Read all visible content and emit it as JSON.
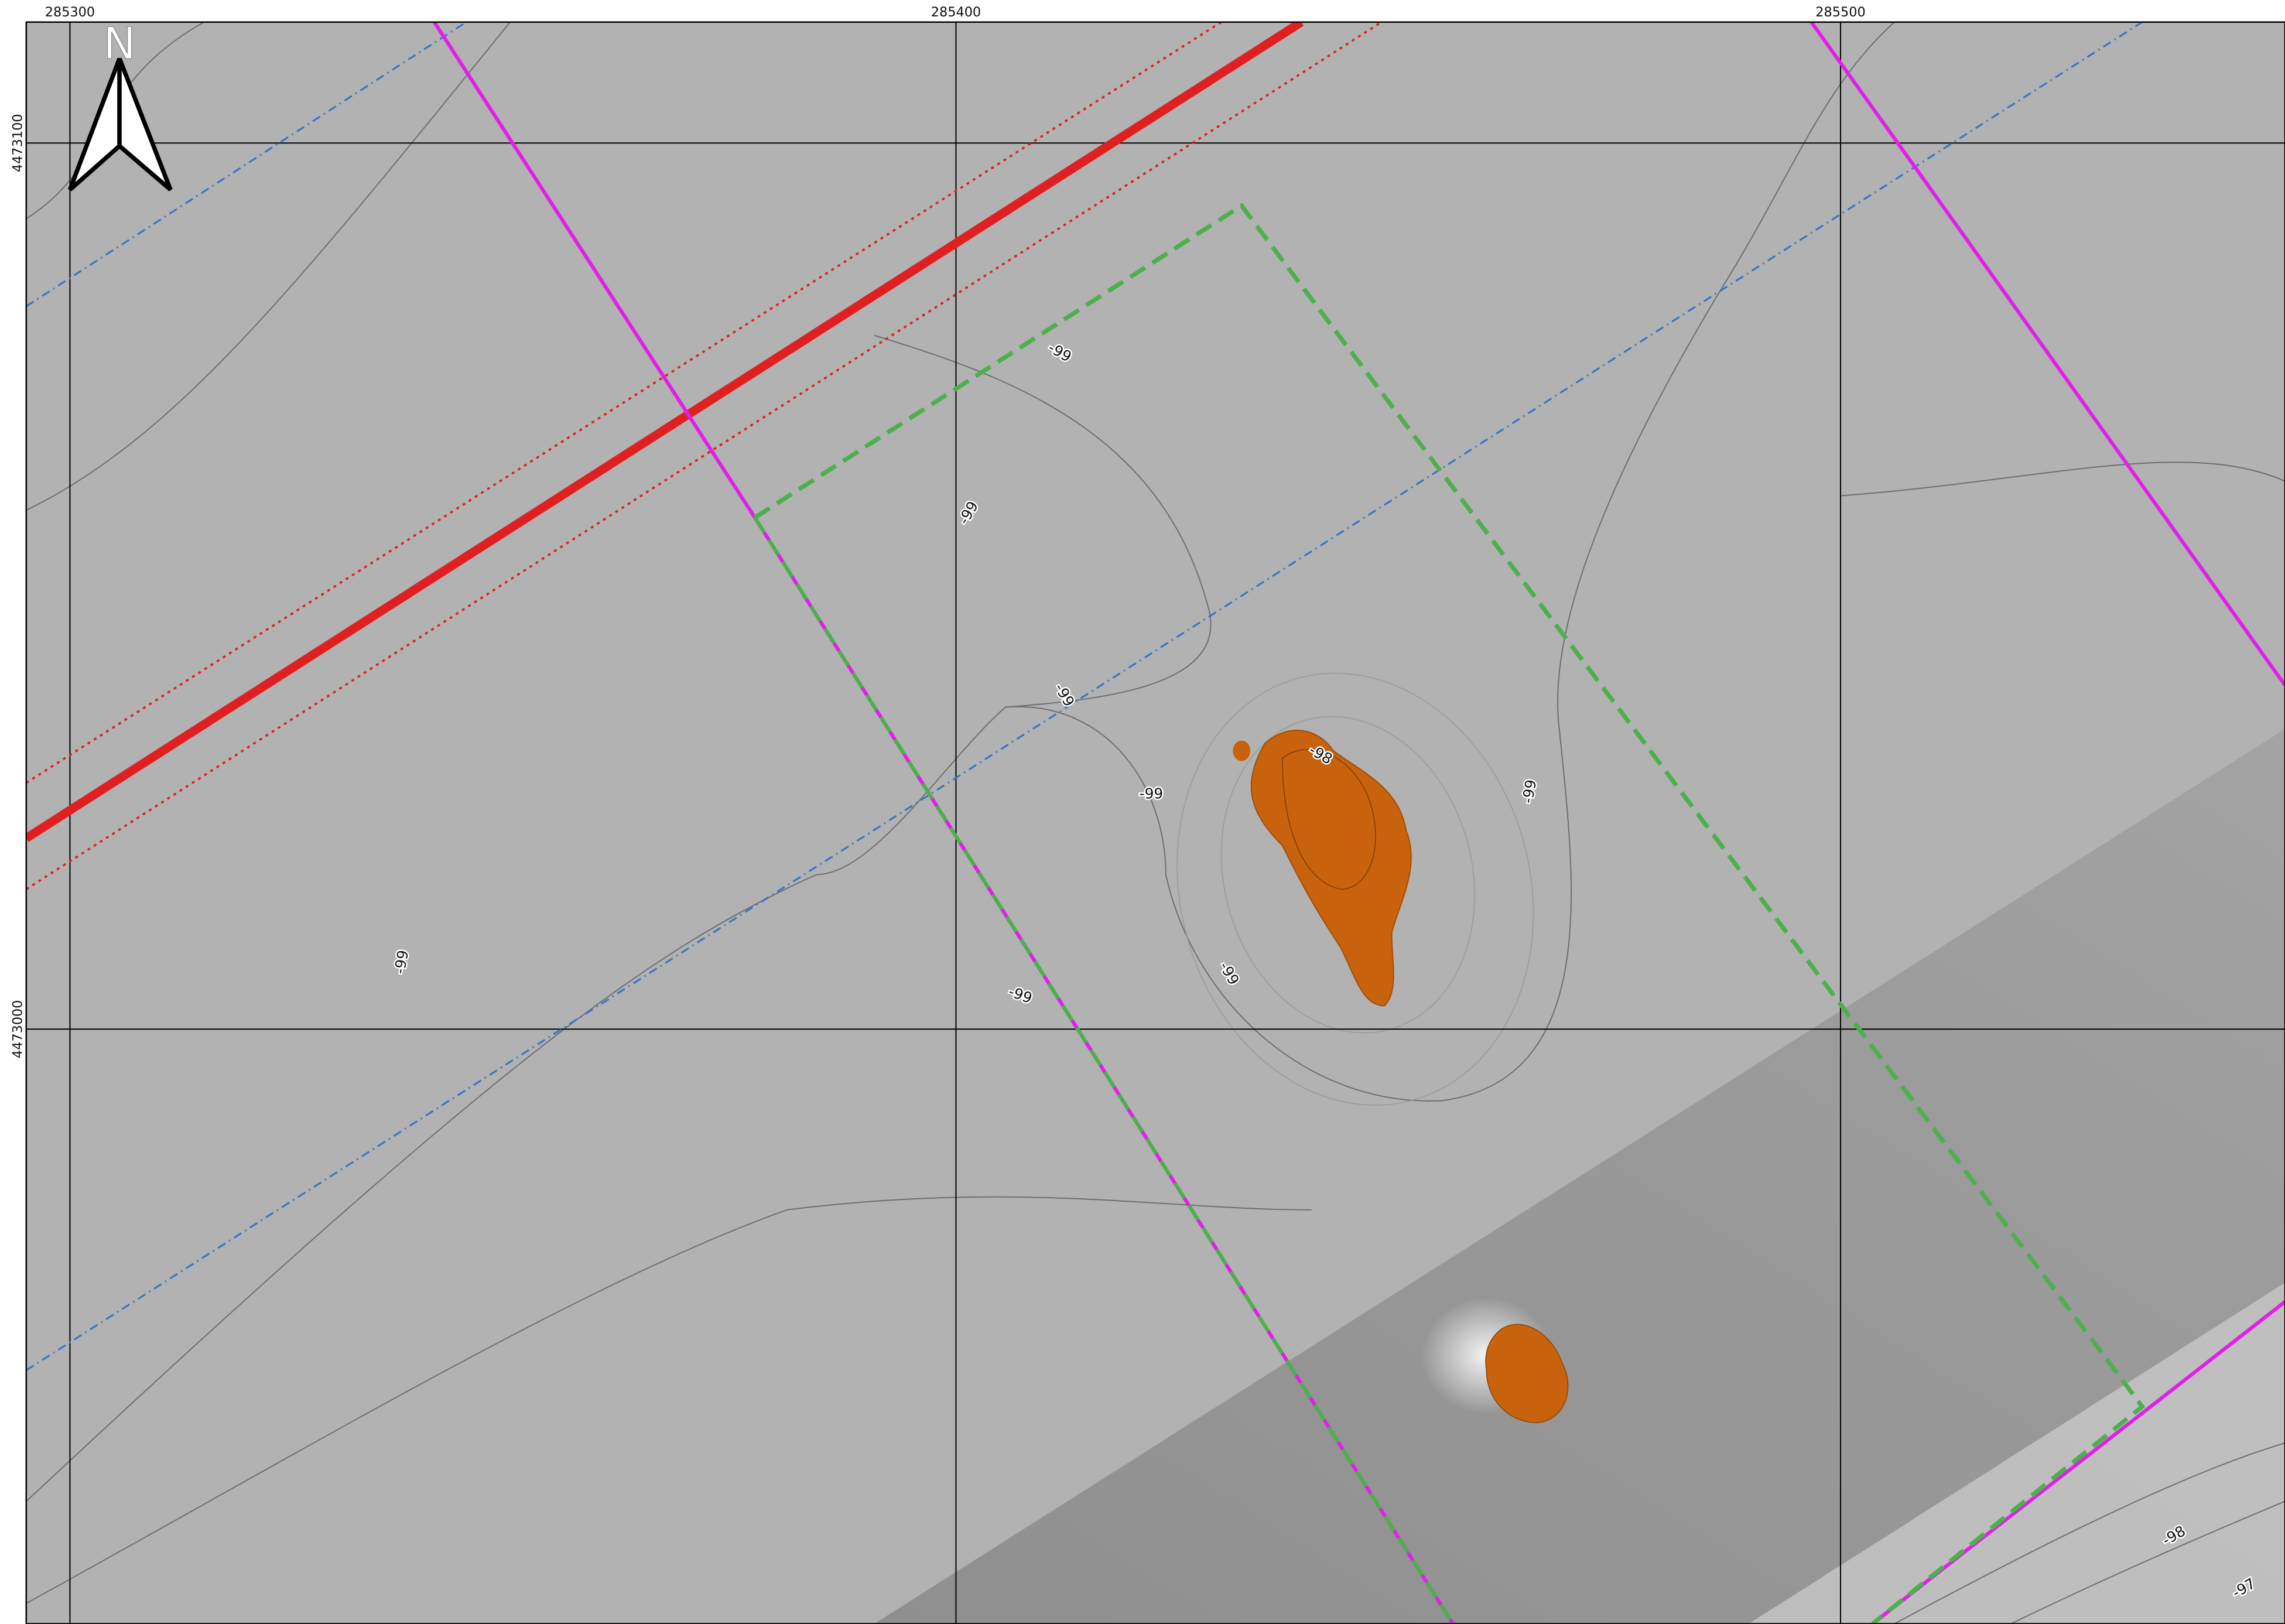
{
  "map": {
    "north_label": "N",
    "x_grid": [
      285300,
      285400,
      285500
    ],
    "y_grid": [
      4473100,
      4473000
    ],
    "contour_labels": [
      -99,
      -99,
      -99,
      -99,
      -98,
      -99,
      -99,
      -99,
      -99,
      -98,
      -97
    ]
  }
}
